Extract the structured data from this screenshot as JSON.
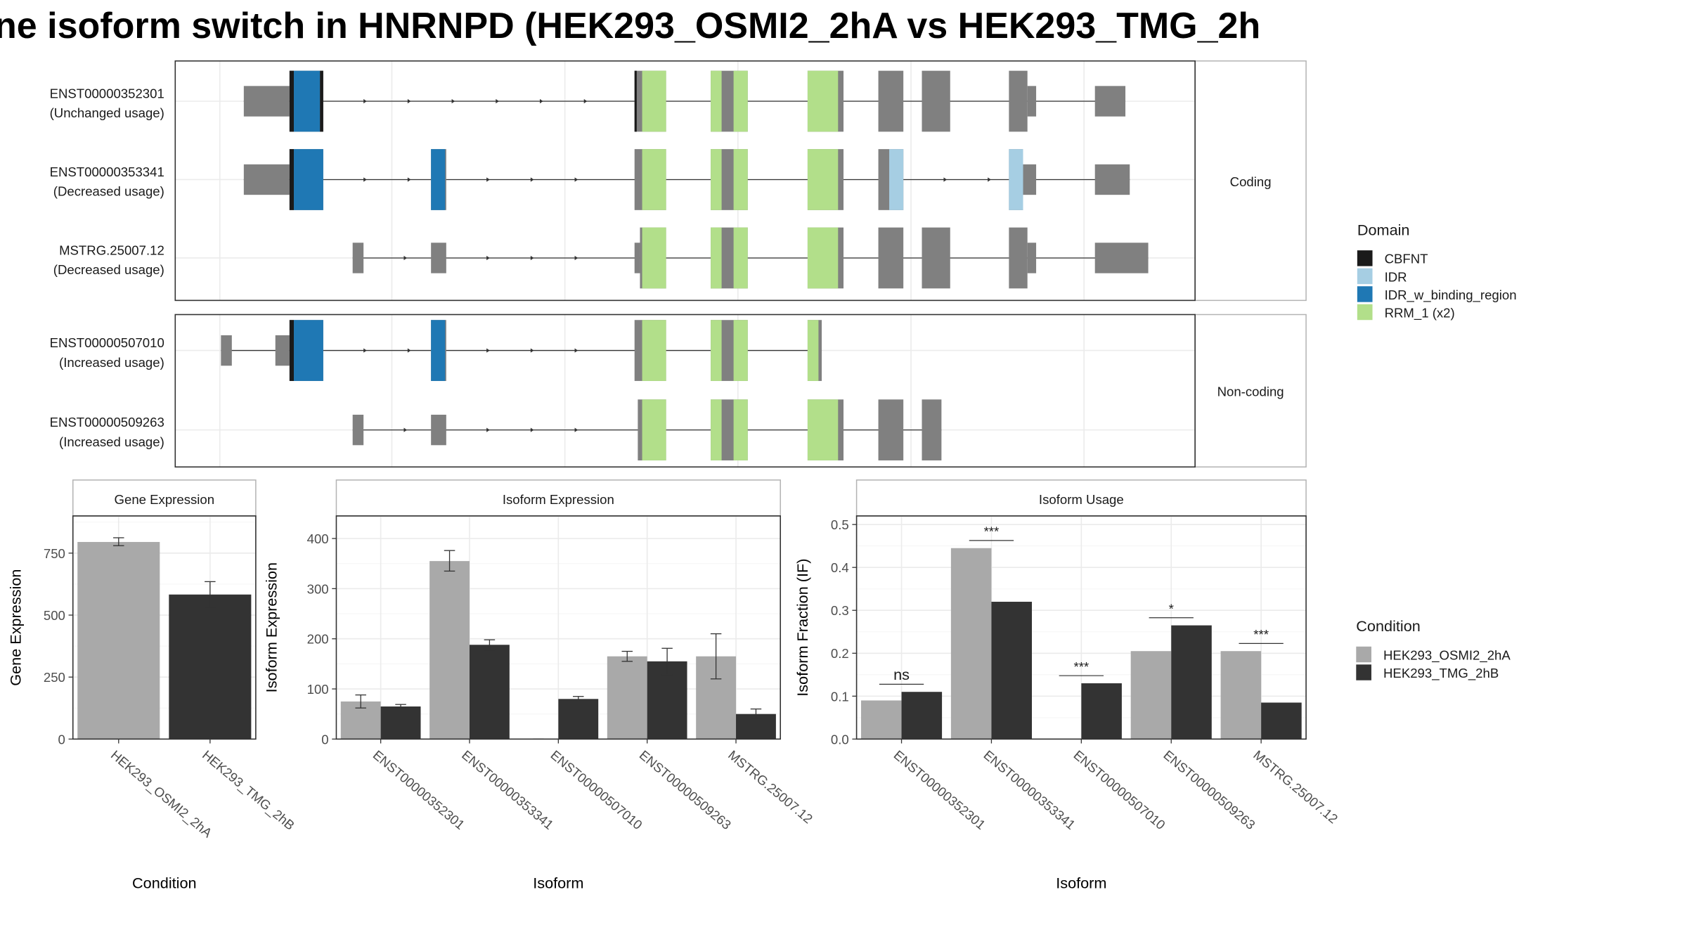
{
  "chart_data": [
    {
      "type": "gene-structure",
      "title": "ne isoform switch in HNRNPD (HEK293_OSMI2_2hA vs HEK293_TMG_2h",
      "facets": [
        {
          "label": "Coding",
          "transcripts": [
            {
              "id": "ENST00000352301",
              "usage": "(Unchanged usage)",
              "exons": [
                [
                  224,
                  266,
                  "UTR"
                ],
                [
                  266,
                  297,
                  "CDS"
                ],
                [
                  583,
                  612,
                  "CDS"
                ],
                [
                  653,
                  687,
                  "CDS"
                ],
                [
                  742,
                  775,
                  "CDS"
                ],
                [
                  807,
                  830,
                  "CDS"
                ],
                [
                  847,
                  873,
                  "CDS"
                ],
                [
                  927,
                  944,
                  "CDS"
                ],
                [
                  944,
                  952,
                  "UTR"
                ],
                [
                  1006,
                  1034,
                  "UTR"
                ]
              ],
              "domains": [
                [
                  266,
                  270,
                  "CBFNT"
                ],
                [
                  270,
                  294,
                  "IDR_w_binding_region"
                ],
                [
                  294,
                  297,
                  "CBFNT"
                ],
                [
                  583,
                  585,
                  "CBFNT"
                ],
                [
                  590,
                  612,
                  "RRM_1 (x2)"
                ],
                [
                  653,
                  663,
                  "RRM_1 (x2)"
                ],
                [
                  674,
                  687,
                  "RRM_1 (x2)"
                ],
                [
                  742,
                  770,
                  "RRM_1 (x2)"
                ]
              ]
            },
            {
              "id": "ENST00000353341",
              "usage": "(Decreased usage)",
              "exons": [
                [
                  224,
                  266,
                  "UTR"
                ],
                [
                  266,
                  297,
                  "CDS"
                ],
                [
                  396,
                  410,
                  "CDS"
                ],
                [
                  583,
                  612,
                  "CDS"
                ],
                [
                  653,
                  687,
                  "CDS"
                ],
                [
                  742,
                  775,
                  "CDS"
                ],
                [
                  807,
                  830,
                  "CDS"
                ],
                [
                  927,
                  940,
                  "CDS"
                ],
                [
                  940,
                  952,
                  "UTR"
                ],
                [
                  1006,
                  1038,
                  "UTR"
                ]
              ],
              "domains": [
                [
                  266,
                  270,
                  "CBFNT"
                ],
                [
                  270,
                  297,
                  "IDR_w_binding_region"
                ],
                [
                  396,
                  409,
                  "IDR_w_binding_region"
                ],
                [
                  590,
                  612,
                  "RRM_1 (x2)"
                ],
                [
                  653,
                  663,
                  "RRM_1 (x2)"
                ],
                [
                  674,
                  687,
                  "RRM_1 (x2)"
                ],
                [
                  742,
                  770,
                  "RRM_1 (x2)"
                ],
                [
                  817,
                  830,
                  "IDR"
                ],
                [
                  927,
                  940,
                  "IDR"
                ]
              ]
            },
            {
              "id": "MSTRG.25007.12",
              "usage": "(Decreased usage)",
              "exons": [
                [
                  324,
                  334,
                  "UTR"
                ],
                [
                  396,
                  410,
                  "UTR"
                ],
                [
                  583,
                  588,
                  "UTR"
                ],
                [
                  588,
                  612,
                  "CDS"
                ],
                [
                  653,
                  687,
                  "CDS"
                ],
                [
                  742,
                  775,
                  "CDS"
                ],
                [
                  807,
                  830,
                  "CDS"
                ],
                [
                  847,
                  873,
                  "CDS"
                ],
                [
                  927,
                  944,
                  "CDS"
                ],
                [
                  944,
                  952,
                  "UTR"
                ],
                [
                  1006,
                  1055,
                  "UTR"
                ]
              ],
              "domains": [
                [
                  590,
                  612,
                  "RRM_1 (x2)"
                ],
                [
                  653,
                  663,
                  "RRM_1 (x2)"
                ],
                [
                  674,
                  687,
                  "RRM_1 (x2)"
                ],
                [
                  742,
                  770,
                  "RRM_1 (x2)"
                ]
              ]
            }
          ]
        },
        {
          "label": "Non-coding",
          "transcripts": [
            {
              "id": "ENST00000507010",
              "usage": "(Increased usage)",
              "exons": [
                [
                  203,
                  213,
                  "UTR"
                ],
                [
                  253,
                  266,
                  "UTR"
                ],
                [
                  266,
                  297,
                  "CDS"
                ],
                [
                  396,
                  410,
                  "CDS"
                ],
                [
                  583,
                  612,
                  "CDS"
                ],
                [
                  653,
                  687,
                  "CDS"
                ],
                [
                  742,
                  755,
                  "CDS"
                ]
              ],
              "domains": [
                [
                  266,
                  270,
                  "CBFNT"
                ],
                [
                  270,
                  297,
                  "IDR_w_binding_region"
                ],
                [
                  396,
                  409,
                  "IDR_w_binding_region"
                ],
                [
                  590,
                  612,
                  "RRM_1 (x2)"
                ],
                [
                  653,
                  663,
                  "RRM_1 (x2)"
                ],
                [
                  674,
                  687,
                  "RRM_1 (x2)"
                ],
                [
                  742,
                  752,
                  "RRM_1 (x2)"
                ]
              ]
            },
            {
              "id": "ENST00000509263",
              "usage": "(Increased usage)",
              "exons": [
                [
                  324,
                  334,
                  "UTR"
                ],
                [
                  396,
                  410,
                  "UTR"
                ],
                [
                  586,
                  612,
                  "CDS"
                ],
                [
                  653,
                  687,
                  "CDS"
                ],
                [
                  742,
                  775,
                  "CDS"
                ],
                [
                  807,
                  830,
                  "CDS"
                ],
                [
                  847,
                  865,
                  "CDS"
                ]
              ],
              "domains": [
                [
                  590,
                  612,
                  "RRM_1 (x2)"
                ],
                [
                  653,
                  663,
                  "RRM_1 (x2)"
                ],
                [
                  674,
                  687,
                  "RRM_1 (x2)"
                ],
                [
                  742,
                  770,
                  "RRM_1 (x2)"
                ]
              ]
            }
          ]
        }
      ],
      "legend": {
        "title": "Domain",
        "items": [
          {
            "label": "CBFNT",
            "color": "#1a1a1a"
          },
          {
            "label": "IDR",
            "color": "#a6cee3"
          },
          {
            "label": "IDR_w_binding_region",
            "color": "#1f78b4"
          },
          {
            "label": "RRM_1 (x2)",
            "color": "#b2df8a"
          }
        ]
      }
    },
    {
      "type": "bar",
      "strip": "Gene Expression",
      "xlabel": "Condition",
      "ylabel": "Gene Expression",
      "categories": [
        "HEK293_OSMI2_2hA",
        "HEK293_TMG_2hB"
      ],
      "values": [
        795,
        583
      ],
      "errors": [
        [
          780,
          812
        ],
        [
          532,
          635
        ]
      ],
      "ylim": [
        0,
        900
      ],
      "yticks": [
        0,
        250,
        500,
        750
      ]
    },
    {
      "type": "bar",
      "strip": "Isoform Expression",
      "xlabel": "Isoform",
      "ylabel": "Isoform Expression",
      "categories": [
        "ENST00000352301",
        "ENST00000353341",
        "ENST00000507010",
        "ENST00000509263",
        "MSTRG.25007.12"
      ],
      "series": [
        {
          "name": "HEK293_OSMI2_2hA",
          "values": [
            75,
            355,
            0,
            165,
            165
          ],
          "errors": [
            [
              62,
              88
            ],
            [
              335,
              376
            ],
            [
              0,
              0
            ],
            [
              155,
              175
            ],
            [
              120,
              210
            ]
          ]
        },
        {
          "name": "HEK293_TMG_2hB",
          "values": [
            65,
            188,
            80,
            155,
            50
          ],
          "errors": [
            [
              61,
              69
            ],
            [
              178,
              198
            ],
            [
              75,
              85
            ],
            [
              128,
              181
            ],
            [
              40,
              60
            ]
          ]
        }
      ],
      "ylim": [
        0,
        445
      ],
      "yticks": [
        0,
        100,
        200,
        300,
        400
      ]
    },
    {
      "type": "bar",
      "strip": "Isoform Usage",
      "xlabel": "Isoform",
      "ylabel": "Isoform Fraction (IF)",
      "categories": [
        "ENST00000352301",
        "ENST00000353341",
        "ENST00000507010",
        "ENST00000509263",
        "MSTRG.25007.12"
      ],
      "series": [
        {
          "name": "HEK293_OSMI2_2hA",
          "values": [
            0.09,
            0.445,
            0,
            0.205,
            0.205
          ]
        },
        {
          "name": "HEK293_TMG_2hB",
          "values": [
            0.11,
            0.32,
            0.13,
            0.265,
            0.085
          ]
        }
      ],
      "significance": [
        "ns",
        "***",
        "***",
        "*",
        "***"
      ],
      "ylim": [
        0,
        0.52
      ],
      "yticks": [
        0.0,
        0.1,
        0.2,
        0.3,
        0.4,
        0.5
      ],
      "yticklabels": [
        "0.0",
        "0.1",
        "0.2",
        "0.3",
        "0.4",
        "0.5"
      ]
    },
    {
      "type": "legend",
      "title": "Condition",
      "items": [
        {
          "label": "HEK293_OSMI2_2hA",
          "color": "#a9a9a9"
        },
        {
          "label": "HEK293_TMG_2hB",
          "color": "#333333"
        }
      ]
    }
  ],
  "colors": {
    "utr": "#808080",
    "cds": "#808080",
    "bar_a": "#a9a9a9",
    "bar_b": "#333333"
  }
}
